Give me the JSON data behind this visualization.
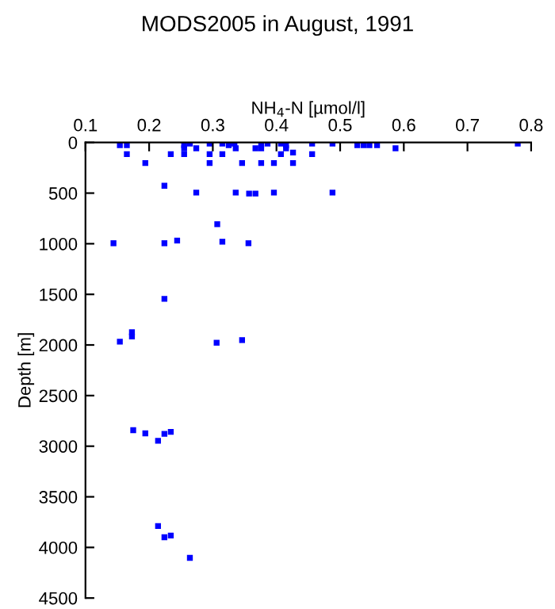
{
  "chart_data": {
    "type": "scatter",
    "title": "MODS2005 in August, 1991",
    "xlabel": "NH$_{4}$-N [µmol/l]",
    "ylabel": "Depth [m]",
    "x": [
      0.154,
      0.165,
      0.165,
      0.194,
      0.234,
      0.255,
      0.255,
      0.255,
      0.264,
      0.274,
      0.295,
      0.295,
      0.295,
      0.315,
      0.315,
      0.325,
      0.334,
      0.336,
      0.346,
      0.367,
      0.376,
      0.376,
      0.376,
      0.386,
      0.396,
      0.407,
      0.407,
      0.415,
      0.415,
      0.426,
      0.426,
      0.456,
      0.456,
      0.488,
      0.527,
      0.537,
      0.546,
      0.558,
      0.587,
      0.779,
      0.224,
      0.274,
      0.336,
      0.357,
      0.367,
      0.396,
      0.488,
      0.307,
      0.144,
      0.224,
      0.244,
      0.315,
      0.356,
      0.224,
      0.154,
      0.173,
      0.173,
      0.306,
      0.346,
      0.175,
      0.194,
      0.214,
      0.224,
      0.234,
      0.214,
      0.224,
      0.234,
      0.264
    ],
    "series": [
      {
        "color": "#0000ff",
        "values": [
          26,
          26,
          115,
          203,
          115,
          26,
          57,
          115,
          10,
          57,
          10,
          115,
          203,
          10,
          115,
          26,
          10,
          57,
          203,
          57,
          57,
          26,
          203,
          10,
          203,
          10,
          115,
          26,
          57,
          99,
          203,
          10,
          115,
          10,
          26,
          26,
          26,
          26,
          57,
          10,
          427,
          495,
          495,
          505,
          505,
          495,
          495,
          807,
          995,
          995,
          969,
          980,
          995,
          1544,
          1968,
          1874,
          1916,
          1978,
          1952,
          2842,
          2873,
          2947,
          2878,
          2858,
          3789,
          3899,
          3883,
          4103
        ]
      }
    ],
    "xlim": [
      0.1,
      0.8
    ],
    "xticks": [
      0.1,
      0.2,
      0.3,
      0.4,
      0.5,
      0.6,
      0.7,
      0.8
    ],
    "ylim": [
      4500,
      0
    ],
    "yticks": [
      0,
      500,
      1000,
      1500,
      2000,
      2500,
      3000,
      3500,
      4000,
      4500
    ],
    "marker": "square",
    "grid": false
  }
}
